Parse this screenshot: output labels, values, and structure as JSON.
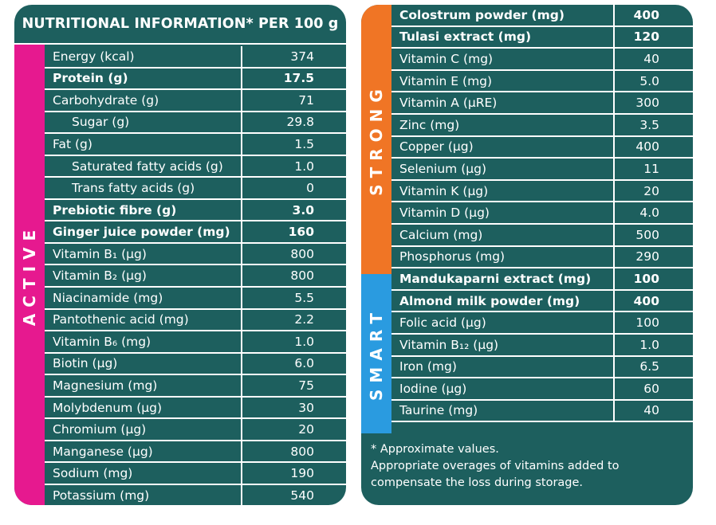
{
  "left": {
    "header": "NUTRITIONAL INFORMATION* PER 100 g",
    "band_label": "ACTIVE",
    "rows": [
      {
        "name": "Energy (kcal)",
        "value": "374",
        "bold": false,
        "indent": false
      },
      {
        "name": "Protein (g)",
        "value": "17.5",
        "bold": true,
        "indent": false
      },
      {
        "name": "Carbohydrate (g)",
        "value": "71",
        "bold": false,
        "indent": false
      },
      {
        "name": "Sugar (g)",
        "value": "29.8",
        "bold": false,
        "indent": true
      },
      {
        "name": "Fat (g)",
        "value": "1.5",
        "bold": false,
        "indent": false
      },
      {
        "name": "Saturated fatty acids (g)",
        "value": "1.0",
        "bold": false,
        "indent": true
      },
      {
        "name": "Trans fatty acids (g)",
        "value": "0",
        "bold": false,
        "indent": true
      },
      {
        "name": "Prebiotic fibre (g)",
        "value": "3.0",
        "bold": true,
        "indent": false
      },
      {
        "name": "Ginger juice powder (mg)",
        "value": "160",
        "bold": true,
        "indent": false
      },
      {
        "name": "Vitamin B₁ (μg)",
        "value": "800",
        "bold": false,
        "indent": false
      },
      {
        "name": "Vitamin B₂ (μg)",
        "value": "800",
        "bold": false,
        "indent": false
      },
      {
        "name": "Niacinamide (mg)",
        "value": "5.5",
        "bold": false,
        "indent": false
      },
      {
        "name": "Pantothenic acid (mg)",
        "value": "2.2",
        "bold": false,
        "indent": false
      },
      {
        "name": "Vitamin B₆ (mg)",
        "value": "1.0",
        "bold": false,
        "indent": false
      },
      {
        "name": "Biotin (μg)",
        "value": "6.0",
        "bold": false,
        "indent": false
      },
      {
        "name": "Magnesium (mg)",
        "value": "75",
        "bold": false,
        "indent": false
      },
      {
        "name": "Molybdenum (μg)",
        "value": "30",
        "bold": false,
        "indent": false
      },
      {
        "name": "Chromium (μg)",
        "value": "20",
        "bold": false,
        "indent": false
      },
      {
        "name": "Manganese (μg)",
        "value": "800",
        "bold": false,
        "indent": false
      },
      {
        "name": "Sodium (mg)",
        "value": "190",
        "bold": false,
        "indent": false
      },
      {
        "name": "Potassium (mg)",
        "value": "540",
        "bold": false,
        "indent": false
      }
    ]
  },
  "right": {
    "band_strong_label": "STRONG",
    "band_smart_label": "SMART",
    "rows": [
      {
        "name": "Colostrum powder (mg)",
        "value": "400",
        "bold": true
      },
      {
        "name": "Tulasi extract (mg)",
        "value": "120",
        "bold": true
      },
      {
        "name": "Vitamin C (mg)",
        "value": "40",
        "bold": false
      },
      {
        "name": "Vitamin E (mg)",
        "value": "5.0",
        "bold": false
      },
      {
        "name": "Vitamin A (μRE)",
        "value": "300",
        "bold": false
      },
      {
        "name": "Zinc (mg)",
        "value": "3.5",
        "bold": false
      },
      {
        "name": "Copper (μg)",
        "value": "400",
        "bold": false
      },
      {
        "name": "Selenium (μg)",
        "value": "11",
        "bold": false
      },
      {
        "name": "Vitamin K (μg)",
        "value": "20",
        "bold": false
      },
      {
        "name": "Vitamin D (μg)",
        "value": "4.0",
        "bold": false
      },
      {
        "name": "Calcium (mg)",
        "value": "500",
        "bold": false
      },
      {
        "name": "Phosphorus (mg)",
        "value": "290",
        "bold": false
      },
      {
        "name": "Mandukaparni extract (mg)",
        "value": "100",
        "bold": true
      },
      {
        "name": "Almond milk powder (mg)",
        "value": "400",
        "bold": true
      },
      {
        "name": "Folic acid (μg)",
        "value": "100",
        "bold": false
      },
      {
        "name": "Vitamin B₁₂ (μg)",
        "value": "1.0",
        "bold": false
      },
      {
        "name": "Iron (mg)",
        "value": "6.5",
        "bold": false
      },
      {
        "name": "Iodine (μg)",
        "value": "60",
        "bold": false
      },
      {
        "name": "Taurine (mg)",
        "value": "40",
        "bold": false
      }
    ],
    "footnote_lines": [
      "* Approximate values.",
      "Appropriate overages of vitamins added to",
      "compensate the loss during storage."
    ]
  },
  "colors": {
    "panel": "#1d5f5e",
    "active": "#e6198f",
    "strong": "#f07525",
    "smart": "#2a9be0",
    "text": "#ffffff"
  }
}
